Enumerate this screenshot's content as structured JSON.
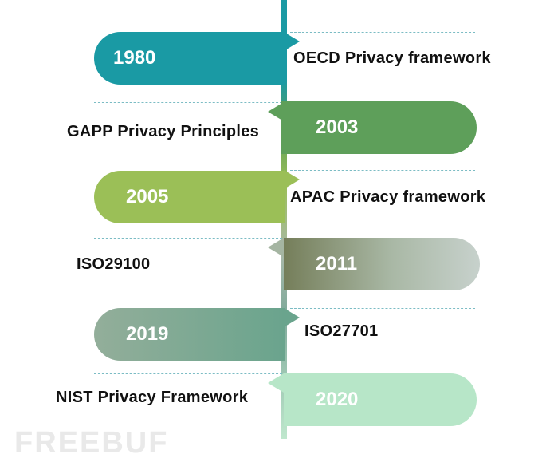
{
  "timeline": [
    {
      "year": "1980",
      "event": "OECD Privacy framework",
      "color": "#1a9aa4"
    },
    {
      "year": "2003",
      "event": "GAPP Privacy Principles",
      "color": "#5e9f5a"
    },
    {
      "year": "2005",
      "event": "APAC Privacy framework",
      "color": "#9bbf57"
    },
    {
      "year": "2011",
      "event": "ISO29100",
      "color": "#7b8461"
    },
    {
      "year": "2019",
      "event": "ISO27701",
      "color": "#6aa48d"
    },
    {
      "year": "2020",
      "event": "NIST Privacy Framework",
      "color": "#b7e6c8"
    }
  ],
  "watermark": "FREEBUF"
}
